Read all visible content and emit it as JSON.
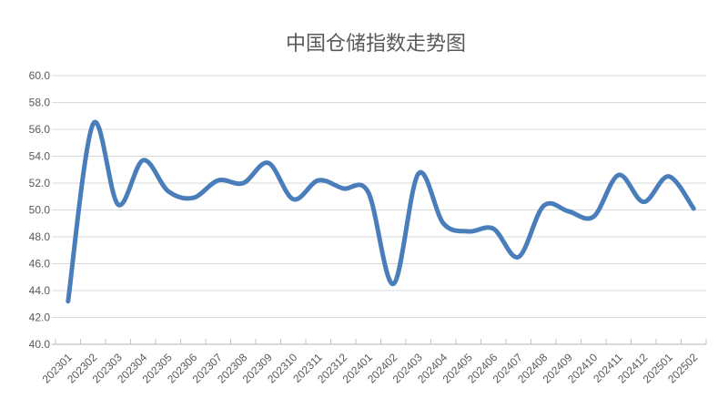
{
  "chart_data": {
    "type": "line",
    "title": "中国仓储指数走势图",
    "categories": [
      "202301",
      "202302",
      "202303",
      "202304",
      "202305",
      "202306",
      "202307",
      "202308",
      "202309",
      "202310",
      "202311",
      "202312",
      "202401",
      "202402",
      "202403",
      "202404",
      "202405",
      "202406",
      "202407",
      "202408",
      "202409",
      "202410",
      "202411",
      "202412",
      "202501",
      "202502"
    ],
    "values": [
      43.2,
      56.4,
      50.4,
      53.7,
      51.4,
      50.9,
      52.2,
      52.0,
      53.5,
      50.8,
      52.2,
      51.6,
      51.3,
      44.5,
      52.7,
      49.0,
      48.4,
      48.6,
      46.5,
      50.3,
      49.9,
      49.5,
      52.6,
      50.6,
      52.5,
      50.1
    ],
    "xlabel": "",
    "ylabel": "",
    "ylim": [
      40.0,
      60.0
    ],
    "ytick_step": 2.0,
    "ytick_labels": [
      "60.0",
      "58.0",
      "56.0",
      "54.0",
      "52.0",
      "50.0",
      "48.0",
      "46.0",
      "44.0",
      "42.0",
      "40.0"
    ],
    "grid": "horizontal-only",
    "legend_position": "none",
    "smooth": true,
    "x_label_rotation_deg": 45,
    "colors": {
      "line": "#4A7EBB",
      "gridline": "#D9D9D9",
      "axis": "#C3C3C3",
      "tick_label": "#595959",
      "title": "#595959",
      "background": "#FFFFFF"
    }
  }
}
